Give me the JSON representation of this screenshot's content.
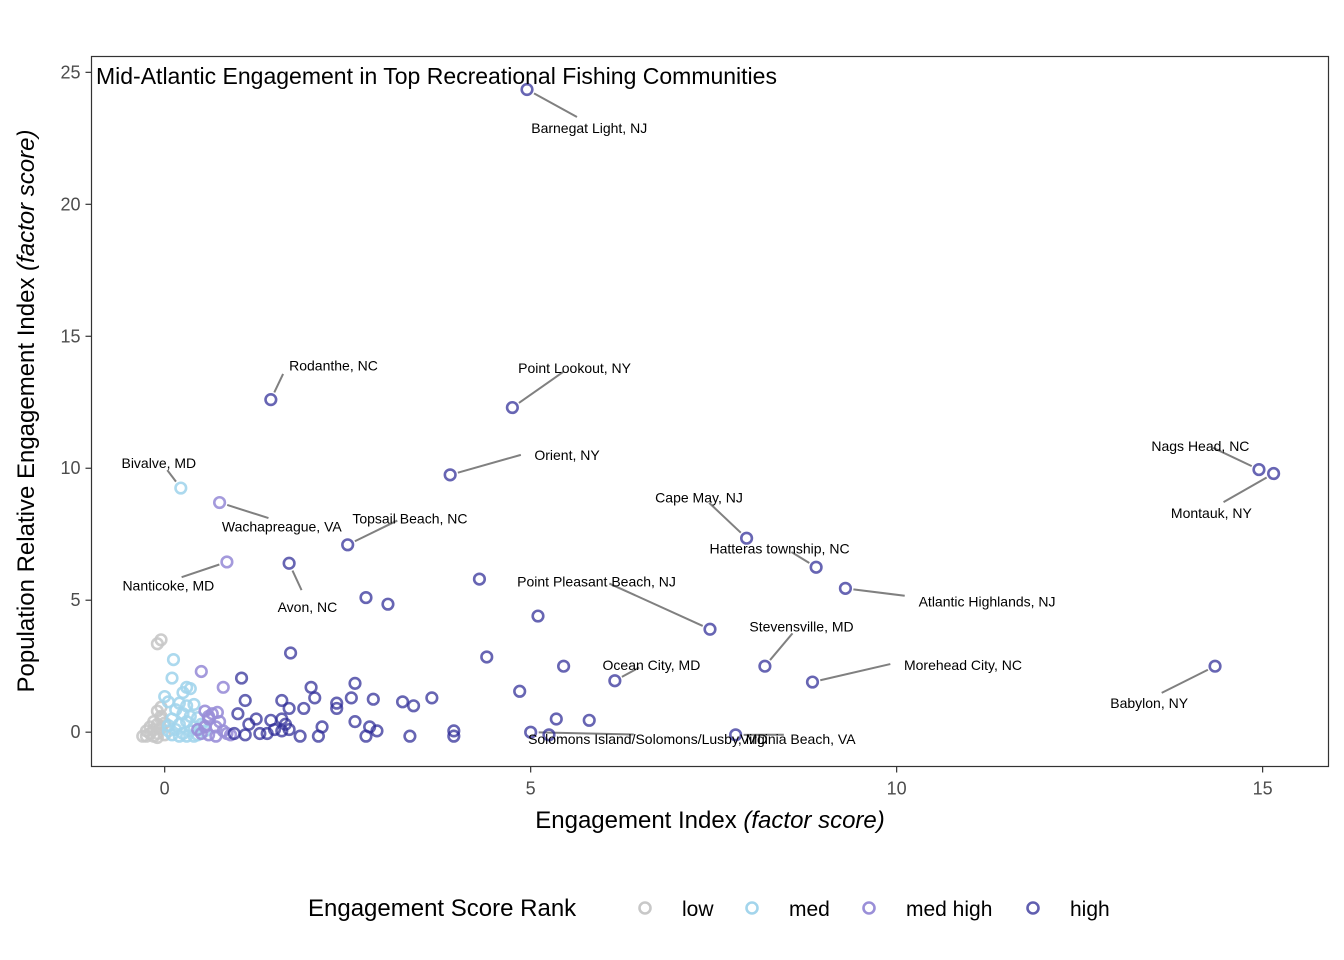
{
  "chart_data": {
    "type": "scatter",
    "title": "Mid-Atlantic Engagement in Top Recreational Fishing Communities",
    "xlabel_main": "Engagement Index ",
    "xlabel_italic": "(factor score)",
    "ylabel_main": "Population Relative Engagement Index ",
    "ylabel_italic": "(factor score)",
    "xlim": [
      -1.0,
      15.9
    ],
    "ylim": [
      -1.3,
      25.6
    ],
    "x_ticks": [
      0,
      5,
      10,
      15
    ],
    "y_ticks": [
      0,
      5,
      10,
      15,
      20,
      25
    ],
    "grid": false,
    "legend": {
      "title": "Engagement Score Rank",
      "position": "bottom",
      "items": [
        {
          "key": "low",
          "label": "low",
          "color": "#c8c8c8"
        },
        {
          "key": "med",
          "label": "med",
          "color": "#a3d5ec"
        },
        {
          "key": "medhigh",
          "label": "med high",
          "color": "#9a8fd8"
        },
        {
          "key": "high",
          "label": "high",
          "color": "#2c2a96"
        }
      ]
    },
    "labeled_points": [
      {
        "label": "Barnegat Light, NJ",
        "x": 4.95,
        "y": 24.35,
        "rank": "high",
        "lx": 5.8,
        "ly": 22.9,
        "anchor": "middle"
      },
      {
        "label": "Rodanthe, NC",
        "x": 1.45,
        "y": 12.6,
        "rank": "high",
        "lx": 1.7,
        "ly": 13.9,
        "anchor": "start"
      },
      {
        "label": "Point Lookout, NY",
        "x": 4.75,
        "y": 12.3,
        "rank": "high",
        "lx": 5.6,
        "ly": 13.8,
        "anchor": "middle"
      },
      {
        "label": "Orient, NY",
        "x": 3.9,
        "y": 9.75,
        "rank": "high",
        "lx": 5.05,
        "ly": 10.5,
        "anchor": "start"
      },
      {
        "label": "Bivalve, MD",
        "x": 0.22,
        "y": 9.25,
        "rank": "med",
        "lx": -0.08,
        "ly": 10.2,
        "anchor": "middle"
      },
      {
        "label": "Wachapreague, VA",
        "x": 0.75,
        "y": 8.7,
        "rank": "medhigh",
        "lx": 1.6,
        "ly": 7.8,
        "anchor": "middle"
      },
      {
        "label": "Topsail Beach, NC",
        "x": 2.5,
        "y": 7.1,
        "rank": "high",
        "lx": 3.35,
        "ly": 8.1,
        "anchor": "middle"
      },
      {
        "label": "Nanticoke, MD",
        "x": 0.85,
        "y": 6.45,
        "rank": "medhigh",
        "lx": 0.05,
        "ly": 5.55,
        "anchor": "middle"
      },
      {
        "label": "Avon, NC",
        "x": 1.7,
        "y": 6.4,
        "rank": "high",
        "lx": 1.95,
        "ly": 4.75,
        "anchor": "middle"
      },
      {
        "label": "Cape May, NJ",
        "x": 7.95,
        "y": 7.35,
        "rank": "high",
        "lx": 7.3,
        "ly": 8.9,
        "anchor": "middle"
      },
      {
        "label": "Hatteras township, NC",
        "x": 8.9,
        "y": 6.25,
        "rank": "high",
        "lx": 8.4,
        "ly": 6.95,
        "anchor": "middle"
      },
      {
        "label": "Atlantic Highlands, NJ",
        "x": 9.3,
        "y": 5.45,
        "rank": "high",
        "lx": 10.3,
        "ly": 4.95,
        "anchor": "start"
      },
      {
        "label": "Point Pleasant Beach, NJ",
        "x": 7.45,
        "y": 3.9,
        "rank": "high",
        "lx": 5.9,
        "ly": 5.7,
        "anchor": "middle"
      },
      {
        "label": "Stevensville, MD",
        "x": 8.2,
        "y": 2.5,
        "rank": "high",
        "lx": 8.7,
        "ly": 4.0,
        "anchor": "middle"
      },
      {
        "label": "Ocean City, MD",
        "x": 6.15,
        "y": 1.95,
        "rank": "high",
        "lx": 6.65,
        "ly": 2.55,
        "anchor": "middle"
      },
      {
        "label": "Morehead City, NC",
        "x": 8.85,
        "y": 1.9,
        "rank": "high",
        "lx": 10.1,
        "ly": 2.55,
        "anchor": "start"
      },
      {
        "label": "Solomons Island/Solomons/Lusby, MD",
        "x": 5.0,
        "y": 0.0,
        "rank": "high",
        "lx": 6.6,
        "ly": -0.25,
        "anchor": "middle"
      },
      {
        "label": "Virginia Beach, VA",
        "x": 7.8,
        "y": -0.1,
        "rank": "high",
        "lx": 8.65,
        "ly": -0.25,
        "anchor": "middle"
      },
      {
        "label": "Nags Head, NC",
        "x": 14.95,
        "y": 9.95,
        "rank": "high",
        "lx": 14.15,
        "ly": 10.85,
        "anchor": "middle"
      },
      {
        "label": "Montauk, NY",
        "x": 15.15,
        "y": 9.8,
        "rank": "high",
        "lx": 14.3,
        "ly": 8.3,
        "anchor": "middle"
      },
      {
        "label": "Babylon, NY",
        "x": 14.35,
        "y": 2.5,
        "rank": "high",
        "lx": 13.45,
        "ly": 1.1,
        "anchor": "middle"
      }
    ],
    "points": {
      "high": [
        [
          1.72,
          3.0
        ],
        [
          1.05,
          2.05
        ],
        [
          1.45,
          0.45
        ],
        [
          2.0,
          1.7
        ],
        [
          2.05,
          1.3
        ],
        [
          1.6,
          1.2
        ],
        [
          1.7,
          0.9
        ],
        [
          1.9,
          0.9
        ],
        [
          2.15,
          0.2
        ],
        [
          2.35,
          0.9
        ],
        [
          2.35,
          1.1
        ],
        [
          2.55,
          1.3
        ],
        [
          2.6,
          1.85
        ],
        [
          2.75,
          5.1
        ],
        [
          3.05,
          4.85
        ],
        [
          2.85,
          1.25
        ],
        [
          2.6,
          0.4
        ],
        [
          2.8,
          0.2
        ],
        [
          2.9,
          0.05
        ],
        [
          2.75,
          -0.15
        ],
        [
          3.25,
          1.15
        ],
        [
          3.4,
          1.0
        ],
        [
          3.65,
          1.3
        ],
        [
          3.35,
          -0.15
        ],
        [
          3.95,
          0.05
        ],
        [
          3.95,
          -0.15
        ],
        [
          2.1,
          -0.15
        ],
        [
          4.3,
          5.8
        ],
        [
          4.4,
          2.85
        ],
        [
          4.85,
          1.55
        ],
        [
          5.1,
          4.4
        ],
        [
          5.45,
          2.5
        ],
        [
          5.35,
          0.5
        ],
        [
          5.25,
          -0.1
        ],
        [
          5.8,
          0.45
        ],
        [
          1.1,
          1.2
        ],
        [
          1.0,
          0.7
        ],
        [
          1.25,
          0.5
        ],
        [
          1.5,
          0.1
        ],
        [
          1.65,
          0.3
        ],
        [
          1.7,
          0.1
        ],
        [
          1.4,
          -0.05
        ],
        [
          1.6,
          0.05
        ],
        [
          0.95,
          -0.05
        ],
        [
          1.1,
          -0.1
        ],
        [
          1.3,
          -0.05
        ],
        [
          1.6,
          0.5
        ],
        [
          1.15,
          0.3
        ],
        [
          1.85,
          -0.15
        ]
      ],
      "medhigh": [
        [
          0.5,
          2.3
        ],
        [
          0.8,
          1.7
        ],
        [
          0.55,
          0.8
        ],
        [
          0.6,
          0.5
        ],
        [
          0.65,
          0.7
        ],
        [
          0.7,
          0.2
        ],
        [
          0.75,
          0.4
        ],
        [
          0.8,
          0.05
        ],
        [
          0.85,
          -0.05
        ],
        [
          0.55,
          0.2
        ],
        [
          0.6,
          -0.1
        ],
        [
          0.7,
          -0.15
        ],
        [
          0.9,
          -0.1
        ],
        [
          0.45,
          0.1
        ],
        [
          0.6,
          0.6
        ],
        [
          0.72,
          0.75
        ],
        [
          0.5,
          -0.05
        ]
      ],
      "med": [
        [
          0.12,
          2.75
        ],
        [
          0.1,
          2.05
        ],
        [
          0.3,
          1.7
        ],
        [
          0.35,
          1.65
        ],
        [
          0.25,
          1.5
        ],
        [
          0.0,
          1.35
        ],
        [
          0.05,
          1.15
        ],
        [
          0.2,
          1.1
        ],
        [
          0.3,
          1.0
        ],
        [
          0.4,
          1.05
        ],
        [
          0.15,
          0.85
        ],
        [
          0.25,
          0.7
        ],
        [
          0.35,
          0.6
        ],
        [
          0.45,
          0.55
        ],
        [
          0.1,
          0.5
        ],
        [
          0.2,
          0.3
        ],
        [
          0.3,
          0.4
        ],
        [
          0.4,
          0.2
        ],
        [
          0.05,
          0.25
        ],
        [
          0.15,
          0.1
        ],
        [
          0.25,
          -0.05
        ],
        [
          0.35,
          0.05
        ],
        [
          0.45,
          -0.1
        ],
        [
          0.1,
          -0.1
        ],
        [
          0.2,
          -0.15
        ],
        [
          0.3,
          -0.15
        ],
        [
          0.4,
          -0.15
        ],
        [
          0.05,
          0.05
        ],
        [
          0.5,
          0.3
        ],
        [
          0.55,
          0.05
        ]
      ],
      "low": [
        [
          -0.05,
          3.5
        ],
        [
          -0.1,
          3.35
        ],
        [
          -0.05,
          0.95
        ],
        [
          -0.1,
          0.8
        ],
        [
          -0.05,
          0.6
        ],
        [
          -0.15,
          0.4
        ],
        [
          -0.1,
          0.3
        ],
        [
          -0.2,
          0.2
        ],
        [
          -0.15,
          0.1
        ],
        [
          -0.25,
          0.05
        ],
        [
          -0.2,
          -0.05
        ],
        [
          -0.25,
          -0.15
        ],
        [
          -0.15,
          -0.15
        ],
        [
          -0.1,
          -0.05
        ],
        [
          -0.05,
          0.15
        ],
        [
          0.0,
          0.35
        ],
        [
          0.0,
          -0.1
        ],
        [
          -0.3,
          -0.15
        ],
        [
          -0.1,
          -0.2
        ],
        [
          -0.05,
          0.5
        ]
      ]
    }
  }
}
